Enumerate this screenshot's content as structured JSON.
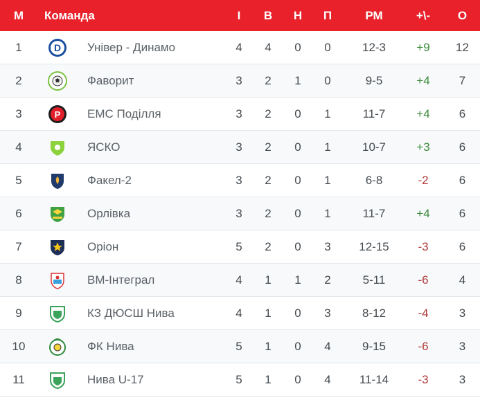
{
  "header": {
    "pos": "М",
    "team": "Команда",
    "games": "І",
    "wins": "В",
    "draws": "Н",
    "losses": "П",
    "goals": "РМ",
    "diff": "+\\-",
    "points": "О"
  },
  "rows": [
    {
      "pos": "1",
      "team": "Універ - Динамо",
      "logo": "dynamo-crest-icon",
      "g": "4",
      "w": "4",
      "d": "0",
      "l": "0",
      "gs": "12-3",
      "diff": "+9",
      "pts": "12"
    },
    {
      "pos": "2",
      "team": "Фаворит",
      "logo": "favorit-crest-icon",
      "g": "3",
      "w": "2",
      "d": "1",
      "l": "0",
      "gs": "9-5",
      "diff": "+4",
      "pts": "7"
    },
    {
      "pos": "3",
      "team": "ЕМС Поділля",
      "logo": "ems-crest-icon",
      "g": "3",
      "w": "2",
      "d": "0",
      "l": "1",
      "gs": "11-7",
      "diff": "+4",
      "pts": "6"
    },
    {
      "pos": "4",
      "team": "ЯСКО",
      "logo": "yasko-crest-icon",
      "g": "3",
      "w": "2",
      "d": "0",
      "l": "1",
      "gs": "10-7",
      "diff": "+3",
      "pts": "6"
    },
    {
      "pos": "5",
      "team": "Факел-2",
      "logo": "fakel-crest-icon",
      "g": "3",
      "w": "2",
      "d": "0",
      "l": "1",
      "gs": "6-8",
      "diff": "-2",
      "pts": "6"
    },
    {
      "pos": "6",
      "team": "Орлівка",
      "logo": "orlivka-crest-icon",
      "g": "3",
      "w": "2",
      "d": "0",
      "l": "1",
      "gs": "11-7",
      "diff": "+4",
      "pts": "6"
    },
    {
      "pos": "7",
      "team": "Оріон",
      "logo": "orion-crest-icon",
      "g": "5",
      "w": "2",
      "d": "0",
      "l": "3",
      "gs": "12-15",
      "diff": "-3",
      "pts": "6"
    },
    {
      "pos": "8",
      "team": "ВМ-Інтеграл",
      "logo": "vm-integral-crest-icon",
      "g": "4",
      "w": "1",
      "d": "1",
      "l": "2",
      "gs": "5-11",
      "diff": "-6",
      "pts": "4"
    },
    {
      "pos": "9",
      "team": "КЗ ДЮСШ Нива",
      "logo": "nyva-dyussh-crest-icon",
      "g": "4",
      "w": "1",
      "d": "0",
      "l": "3",
      "gs": "8-12",
      "diff": "-4",
      "pts": "3"
    },
    {
      "pos": "10",
      "team": "ФК Нива",
      "logo": "fk-nyva-crest-icon",
      "g": "5",
      "w": "1",
      "d": "0",
      "l": "4",
      "gs": "9-15",
      "diff": "-6",
      "pts": "3"
    },
    {
      "pos": "11",
      "team": "Нива U-17",
      "logo": "nyva-u17-crest-icon",
      "g": "5",
      "w": "1",
      "d": "0",
      "l": "4",
      "gs": "11-14",
      "diff": "-3",
      "pts": "3"
    }
  ],
  "colors": {
    "header_bg": "#e8212b",
    "positive_diff": "#3a8a3a",
    "negative_diff": "#b03a3a"
  }
}
